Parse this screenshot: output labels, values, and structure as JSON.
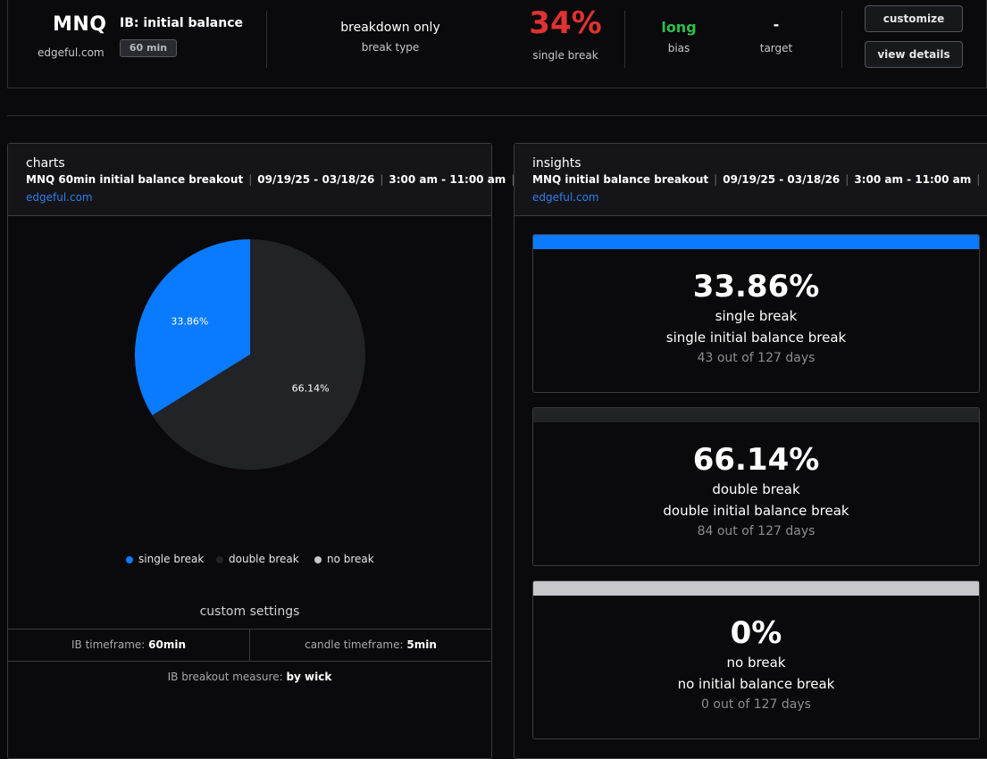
{
  "header": {
    "symbol": "MNQ",
    "site": "edgeful.com",
    "report_title": "IB: initial balance",
    "timeframe_badge": "60 min",
    "break_type_value": "breakdown only",
    "break_type_label": "break type",
    "main_pct": "34%",
    "main_pct_label": "single break",
    "bias_value": "long",
    "bias_label": "bias",
    "target_value": "-",
    "target_label": "target",
    "customize_label": "customize",
    "view_details_label": "view details"
  },
  "colors": {
    "accent_blue": "#0a7bff",
    "dark_slice": "#222327",
    "no_break": "#c8c8cc",
    "red": "#e03232",
    "green": "#2fbf4a"
  },
  "charts_panel": {
    "title": "charts",
    "meta_name": "MNQ 60min initial balance breakout",
    "meta_dates": "09/19/25 - 03/18/26",
    "meta_time": "3:00 am - 11:00 am",
    "meta_sep": "|",
    "link": "edgeful.com",
    "custom_settings_title": "custom settings",
    "ib_timeframe_label": "IB timeframe:",
    "ib_timeframe_value": "60min",
    "candle_timeframe_label": "candle timeframe:",
    "candle_timeframe_value": "5min",
    "breakout_measure_label": "IB breakout measure:",
    "breakout_measure_value": "by wick"
  },
  "chart_data": {
    "type": "pie",
    "categories": [
      "single break",
      "double break",
      "no break"
    ],
    "values": [
      33.86,
      66.14,
      0
    ],
    "slice_labels": [
      "33.86%",
      "66.14%",
      ""
    ],
    "colors": [
      "#0a7bff",
      "#222327",
      "#c8c8cc"
    ],
    "legend": [
      "single break",
      "double break",
      "no break"
    ],
    "legend_position": "bottom"
  },
  "insights_panel": {
    "title": "insights",
    "meta_name": "MNQ initial balance breakout",
    "meta_dates": "09/19/25 - 03/18/26",
    "meta_time": "3:00 am - 11:00 am",
    "meta_sep": "|",
    "link": "edgeful.com",
    "cards": [
      {
        "pct": "33.86%",
        "name": "single break",
        "desc": "single initial balance break",
        "days": "43 out of 127 days",
        "color": "#0a7bff"
      },
      {
        "pct": "66.14%",
        "name": "double break",
        "desc": "double initial balance break",
        "days": "84 out of 127 days",
        "color": "#222327"
      },
      {
        "pct": "0%",
        "name": "no break",
        "desc": "no initial balance break",
        "days": "0 out of 127 days",
        "color": "#c8c8cc"
      }
    ]
  }
}
